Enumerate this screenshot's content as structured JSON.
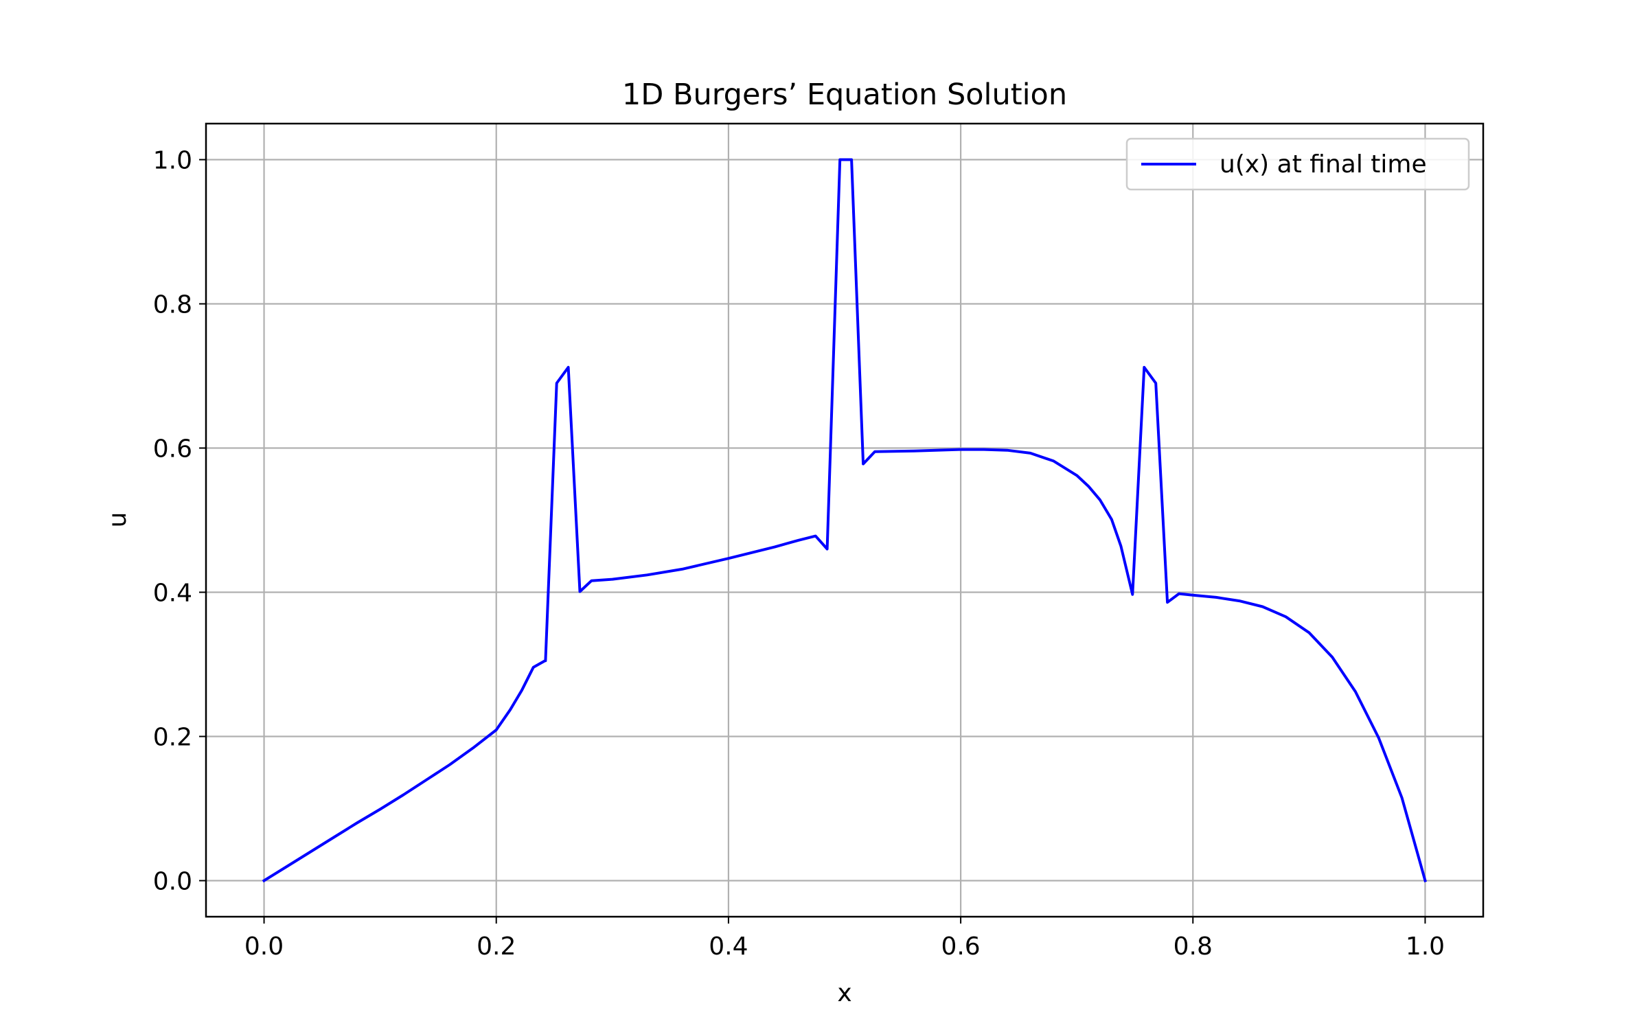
{
  "chart_data": {
    "type": "line",
    "title": "1D Burgers’ Equation Solution",
    "xlabel": "x",
    "ylabel": "u",
    "xlim": [
      -0.05,
      1.05
    ],
    "ylim": [
      -0.05,
      1.05
    ],
    "xticks": [
      0.0,
      0.2,
      0.4,
      0.6,
      0.8,
      1.0
    ],
    "xtick_labels": [
      "0.0",
      "0.2",
      "0.4",
      "0.6",
      "0.8",
      "1.0"
    ],
    "yticks": [
      0.0,
      0.2,
      0.4,
      0.6,
      0.8,
      1.0
    ],
    "ytick_labels": [
      "0.0",
      "0.2",
      "0.4",
      "0.6",
      "0.8",
      "1.0"
    ],
    "grid": true,
    "legend_position": "top-right",
    "series": [
      {
        "name": "u(x) at final time",
        "color": "#0000ff",
        "points": [
          [
            0.0,
            0.0
          ],
          [
            0.02,
            0.02
          ],
          [
            0.04,
            0.04
          ],
          [
            0.06,
            0.06
          ],
          [
            0.08,
            0.08
          ],
          [
            0.1,
            0.099
          ],
          [
            0.12,
            0.119
          ],
          [
            0.14,
            0.14
          ],
          [
            0.16,
            0.161
          ],
          [
            0.18,
            0.184
          ],
          [
            0.2,
            0.209
          ],
          [
            0.212,
            0.237
          ],
          [
            0.222,
            0.264
          ],
          [
            0.232,
            0.296
          ],
          [
            0.242,
            0.305
          ],
          [
            0.2424,
            0.305
          ],
          [
            0.252,
            0.69
          ],
          [
            0.262,
            0.712
          ],
          [
            0.272,
            0.401
          ],
          [
            0.282,
            0.416
          ],
          [
            0.3,
            0.418
          ],
          [
            0.33,
            0.424
          ],
          [
            0.36,
            0.432
          ],
          [
            0.4,
            0.447
          ],
          [
            0.44,
            0.463
          ],
          [
            0.46,
            0.472
          ],
          [
            0.475,
            0.478
          ],
          [
            0.485,
            0.46
          ],
          [
            0.496,
            1.0
          ],
          [
            0.506,
            1.0
          ],
          [
            0.516,
            0.578
          ],
          [
            0.526,
            0.595
          ],
          [
            0.56,
            0.596
          ],
          [
            0.6,
            0.598
          ],
          [
            0.62,
            0.598
          ],
          [
            0.64,
            0.597
          ],
          [
            0.66,
            0.593
          ],
          [
            0.68,
            0.582
          ],
          [
            0.7,
            0.562
          ],
          [
            0.71,
            0.547
          ],
          [
            0.72,
            0.528
          ],
          [
            0.73,
            0.501
          ],
          [
            0.738,
            0.464
          ],
          [
            0.748,
            0.397
          ],
          [
            0.758,
            0.712
          ],
          [
            0.768,
            0.69
          ],
          [
            0.778,
            0.386
          ],
          [
            0.788,
            0.398
          ],
          [
            0.8,
            0.396
          ],
          [
            0.82,
            0.393
          ],
          [
            0.84,
            0.388
          ],
          [
            0.86,
            0.38
          ],
          [
            0.88,
            0.366
          ],
          [
            0.9,
            0.344
          ],
          [
            0.92,
            0.31
          ],
          [
            0.94,
            0.262
          ],
          [
            0.96,
            0.198
          ],
          [
            0.98,
            0.115
          ],
          [
            1.0,
            0.0
          ]
        ]
      }
    ]
  }
}
